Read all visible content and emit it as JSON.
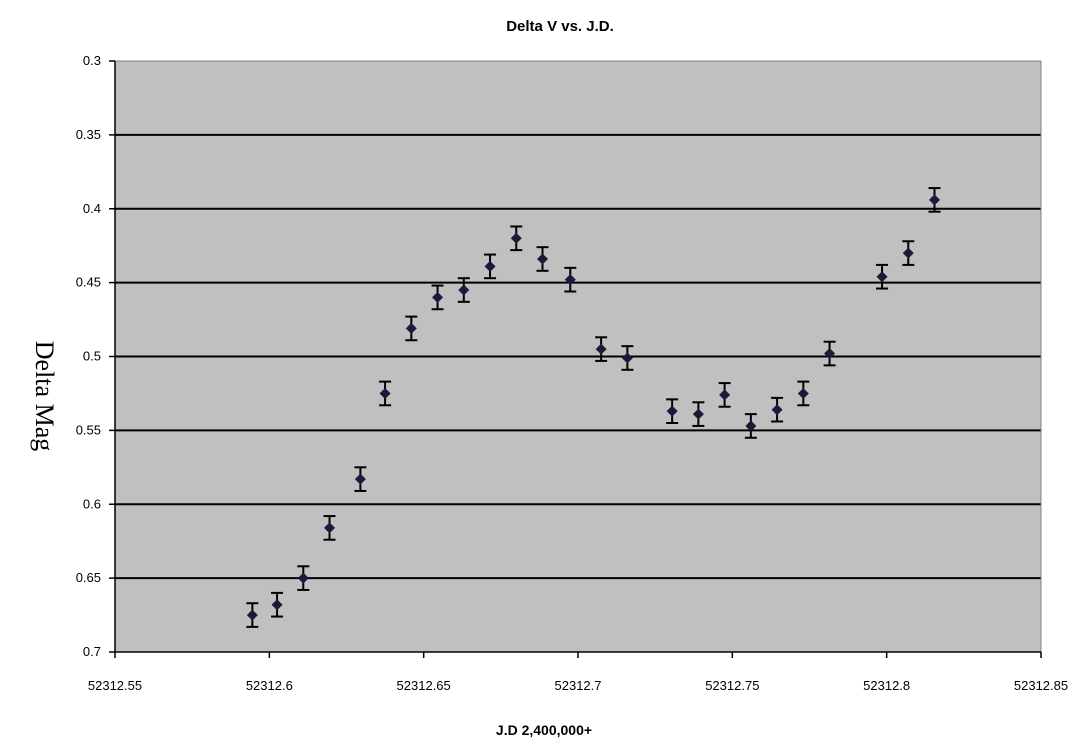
{
  "chart_data": {
    "type": "scatter",
    "title": "Delta V vs. J.D.",
    "xlabel": "J.D 2,400,000+",
    "ylabel": "Delta Mag",
    "xlim": [
      52312.55,
      52312.85
    ],
    "ylim": [
      0.3,
      0.7
    ],
    "y_inverted": true,
    "x_ticks": [
      "52312.55",
      "52312.6",
      "52312.65",
      "52312.7",
      "52312.75",
      "52312.8",
      "52312.85"
    ],
    "y_ticks": [
      "0.3",
      "0.35",
      "0.4",
      "0.45",
      "0.5",
      "0.55",
      "0.6",
      "0.65",
      "0.7"
    ],
    "grid": true,
    "legend": "none",
    "colors": {
      "plot_background": "#c0c0c0",
      "marker": "#1a1a3a",
      "gridline": "#000000"
    },
    "error_bar": 0.008,
    "points": [
      {
        "x": 52312.5945,
        "y": 0.675
      },
      {
        "x": 52312.6025,
        "y": 0.668
      },
      {
        "x": 52312.611,
        "y": 0.65
      },
      {
        "x": 52312.6195,
        "y": 0.616
      },
      {
        "x": 52312.6295,
        "y": 0.583
      },
      {
        "x": 52312.6375,
        "y": 0.525
      },
      {
        "x": 52312.646,
        "y": 0.481
      },
      {
        "x": 52312.6545,
        "y": 0.46
      },
      {
        "x": 52312.663,
        "y": 0.455
      },
      {
        "x": 52312.6715,
        "y": 0.439
      },
      {
        "x": 52312.68,
        "y": 0.42
      },
      {
        "x": 52312.6885,
        "y": 0.434
      },
      {
        "x": 52312.6975,
        "y": 0.448
      },
      {
        "x": 52312.7075,
        "y": 0.495
      },
      {
        "x": 52312.716,
        "y": 0.501
      },
      {
        "x": 52312.7305,
        "y": 0.537
      },
      {
        "x": 52312.739,
        "y": 0.539
      },
      {
        "x": 52312.7475,
        "y": 0.526
      },
      {
        "x": 52312.756,
        "y": 0.547
      },
      {
        "x": 52312.7645,
        "y": 0.536
      },
      {
        "x": 52312.773,
        "y": 0.525
      },
      {
        "x": 52312.7815,
        "y": 0.498
      },
      {
        "x": 52312.7985,
        "y": 0.446
      },
      {
        "x": 52312.807,
        "y": 0.43
      },
      {
        "x": 52312.8155,
        "y": 0.394
      }
    ]
  }
}
